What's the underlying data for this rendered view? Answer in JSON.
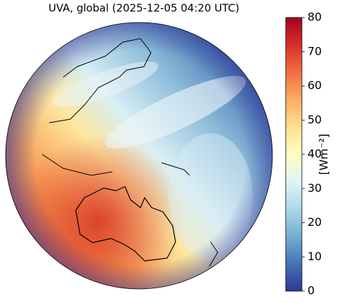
{
  "title": "UVA, global (2025-12-05 04:20 UTC)",
  "colorbar": {
    "label": "[Wm⁻²]",
    "lim": [
      0,
      80
    ],
    "ticks": [
      0,
      10,
      20,
      30,
      40,
      50,
      60,
      70,
      80
    ]
  }
}
